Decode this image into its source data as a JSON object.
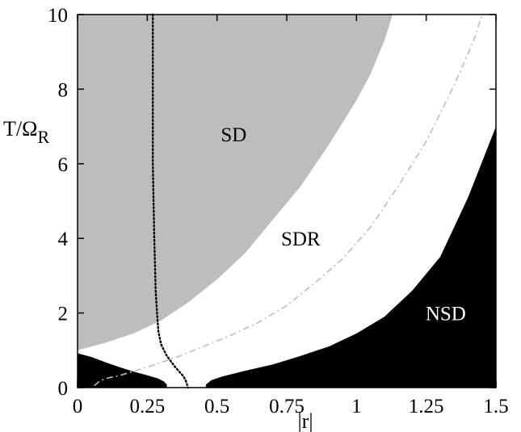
{
  "chart_data": {
    "type": "area",
    "xlabel": "|r|",
    "ylabel_main": "T/Ω",
    "ylabel_sub": "R",
    "xlim": [
      0,
      1.5
    ],
    "ylim": [
      0,
      10
    ],
    "x_ticks": [
      "0",
      "0.25",
      "0.5",
      "0.75",
      "1",
      "1.25",
      "1.5"
    ],
    "y_ticks": [
      "0",
      "2",
      "4",
      "6",
      "8",
      "10"
    ],
    "grid": false,
    "colors": {
      "SD": "#bdbdbd",
      "SDR": "#ffffff",
      "NSD": "#000000",
      "dashdot": "#bdbdbd",
      "dotted": "#000000"
    },
    "regions": [
      {
        "label": "SD",
        "label_pos": [
          0.56,
          6.8
        ],
        "label_color": "#000000"
      },
      {
        "label": "SDR",
        "label_pos": [
          0.8,
          4.0
        ],
        "label_color": "#000000"
      },
      {
        "label": "NSD",
        "label_pos": [
          1.32,
          2.0
        ],
        "label_color": "#ffffff"
      }
    ],
    "sd_boundary": [
      [
        0,
        1.0
      ],
      [
        0.1,
        1.2
      ],
      [
        0.2,
        1.45
      ],
      [
        0.3,
        1.8
      ],
      [
        0.4,
        2.3
      ],
      [
        0.5,
        2.9
      ],
      [
        0.6,
        3.6
      ],
      [
        0.7,
        4.5
      ],
      [
        0.8,
        5.4
      ],
      [
        0.9,
        6.5
      ],
      [
        1.0,
        7.7
      ],
      [
        1.05,
        8.4
      ],
      [
        1.1,
        9.3
      ],
      [
        1.13,
        10.0
      ]
    ],
    "nsd_lower_left": [
      [
        0,
        0
      ],
      [
        0,
        0.92
      ],
      [
        0.05,
        0.82
      ],
      [
        0.1,
        0.68
      ],
      [
        0.15,
        0.55
      ],
      [
        0.2,
        0.43
      ],
      [
        0.25,
        0.33
      ],
      [
        0.29,
        0.24
      ],
      [
        0.31,
        0.16
      ],
      [
        0.32,
        0.08
      ],
      [
        0.32,
        0
      ]
    ],
    "nsd_lower_right": [
      [
        0.46,
        0
      ],
      [
        0.46,
        0.08
      ],
      [
        0.48,
        0.2
      ],
      [
        0.52,
        0.3
      ],
      [
        0.6,
        0.45
      ],
      [
        0.7,
        0.62
      ],
      [
        0.8,
        0.85
      ],
      [
        0.9,
        1.1
      ],
      [
        1.0,
        1.45
      ],
      [
        1.1,
        1.9
      ],
      [
        1.2,
        2.6
      ],
      [
        1.3,
        3.5
      ],
      [
        1.4,
        5.1
      ],
      [
        1.5,
        7.0
      ],
      [
        1.5,
        0
      ]
    ],
    "dashdot_curve": [
      [
        0.06,
        0.05
      ],
      [
        0.08,
        0.18
      ],
      [
        0.11,
        0.26
      ],
      [
        0.15,
        0.32
      ],
      [
        0.25,
        0.55
      ],
      [
        0.35,
        0.8
      ],
      [
        0.45,
        1.1
      ],
      [
        0.55,
        1.4
      ],
      [
        0.65,
        1.75
      ],
      [
        0.75,
        2.2
      ],
      [
        0.85,
        2.8
      ],
      [
        0.95,
        3.45
      ],
      [
        1.05,
        4.3
      ],
      [
        1.15,
        5.4
      ],
      [
        1.25,
        6.6
      ],
      [
        1.35,
        8.1
      ],
      [
        1.42,
        9.3
      ],
      [
        1.45,
        10.0
      ]
    ],
    "dotted_curve": [
      [
        0.27,
        10.0
      ],
      [
        0.27,
        8.0
      ],
      [
        0.27,
        6.0
      ],
      [
        0.275,
        4.0
      ],
      [
        0.28,
        2.6
      ],
      [
        0.285,
        2.0
      ],
      [
        0.29,
        1.5
      ],
      [
        0.3,
        1.15
      ],
      [
        0.32,
        0.85
      ],
      [
        0.35,
        0.55
      ],
      [
        0.38,
        0.3
      ],
      [
        0.39,
        0.15
      ],
      [
        0.395,
        0.0
      ]
    ]
  }
}
